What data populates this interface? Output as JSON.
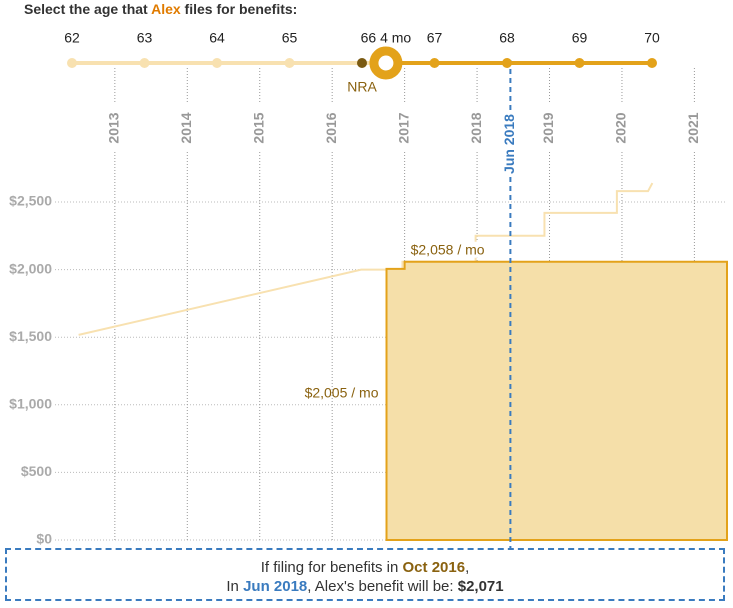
{
  "header": {
    "parts": [
      "Select the age that ",
      "Alex",
      " files for benefits:"
    ]
  },
  "slider": {
    "ages": [
      62,
      63,
      64,
      65,
      67,
      68,
      69,
      70
    ],
    "range": [
      62,
      70
    ],
    "selected": {
      "value": 66.33,
      "label": "66 4 mo"
    },
    "nra": {
      "value": 66,
      "label": "NRA"
    }
  },
  "chart_data": {
    "type": "step-area",
    "xlim": [
      2012.45,
      2021.45
    ],
    "xticks": [
      2013,
      2014,
      2015,
      2016,
      2017,
      2018,
      2019,
      2020,
      2021
    ],
    "ylim": [
      0,
      2500
    ],
    "yticks": [
      {
        "value": 0,
        "label": "$0"
      },
      {
        "value": 500,
        "label": "$500"
      },
      {
        "value": 1000,
        "label": "$1,000"
      },
      {
        "value": 1500,
        "label": "$1,500"
      },
      {
        "value": 2000,
        "label": "$2,000"
      },
      {
        "value": 2500,
        "label": "$2,500"
      }
    ],
    "grid": true,
    "series": [
      {
        "color": "#f8e1b0",
        "x": [
          2012.5,
          2016.4,
          2016.97,
          2016.97,
          2017.98,
          2017.98,
          2018.93,
          2018.93,
          2019.93,
          2019.93,
          2020.36,
          2020.42
        ],
        "values": [
          1517,
          2000,
          2000,
          2058,
          2058,
          2250,
          2250,
          2420,
          2420,
          2580,
          2580,
          2640
        ]
      },
      {
        "color": "#e3a21a",
        "fill": "#f5dfa9",
        "x": [
          2016.75,
          2017.0
        ],
        "values": [
          2005,
          2058
        ],
        "value_labels": [
          "$2,005 / mo",
          "$2,058 / mo"
        ]
      }
    ],
    "marker": {
      "x": 2018.46,
      "label": "Jun 2018",
      "color": "#3a7bbf"
    }
  },
  "summary": {
    "line1": [
      "If filing for benefits in ",
      "Oct 2016",
      ","
    ],
    "line2": [
      "In ",
      "Jun 2018",
      ", Alex's benefit will be: ",
      "$2,071"
    ]
  }
}
